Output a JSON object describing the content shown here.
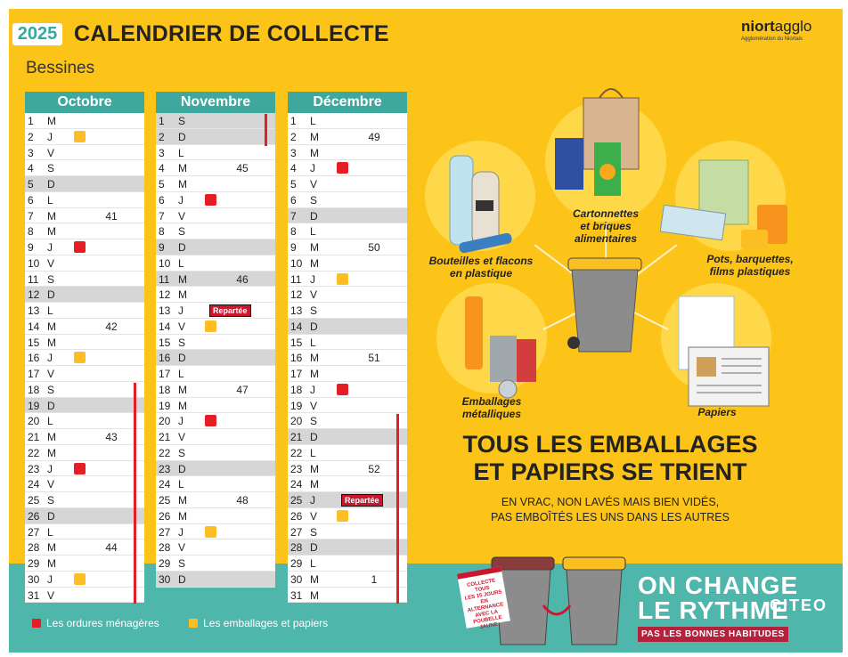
{
  "header": {
    "year": "2025",
    "title": "CALENDRIER DE COLLECTE",
    "city": "Bessines",
    "logo_name_bold": "niort",
    "logo_name_rest": "agglo",
    "logo_subtitle": "Agglomération du Niortais"
  },
  "months": [
    {
      "name": "Octobre",
      "days": [
        {
          "n": "1",
          "wd": "M"
        },
        {
          "n": "2",
          "wd": "J",
          "mark": "yellow"
        },
        {
          "n": "3",
          "wd": "V"
        },
        {
          "n": "4",
          "wd": "S"
        },
        {
          "n": "5",
          "wd": "D",
          "shaded": true
        },
        {
          "n": "6",
          "wd": "L"
        },
        {
          "n": "7",
          "wd": "M",
          "week": "41"
        },
        {
          "n": "8",
          "wd": "M"
        },
        {
          "n": "9",
          "wd": "J",
          "mark": "red"
        },
        {
          "n": "10",
          "wd": "V"
        },
        {
          "n": "11",
          "wd": "S"
        },
        {
          "n": "12",
          "wd": "D",
          "shaded": true
        },
        {
          "n": "13",
          "wd": "L"
        },
        {
          "n": "14",
          "wd": "M",
          "week": "42"
        },
        {
          "n": "15",
          "wd": "M"
        },
        {
          "n": "16",
          "wd": "J",
          "mark": "yellow"
        },
        {
          "n": "17",
          "wd": "V"
        },
        {
          "n": "18",
          "wd": "S"
        },
        {
          "n": "19",
          "wd": "D",
          "shaded": true
        },
        {
          "n": "20",
          "wd": "L"
        },
        {
          "n": "21",
          "wd": "M",
          "week": "43"
        },
        {
          "n": "22",
          "wd": "M"
        },
        {
          "n": "23",
          "wd": "J",
          "mark": "red"
        },
        {
          "n": "24",
          "wd": "V"
        },
        {
          "n": "25",
          "wd": "S"
        },
        {
          "n": "26",
          "wd": "D",
          "shaded": true
        },
        {
          "n": "27",
          "wd": "L"
        },
        {
          "n": "28",
          "wd": "M",
          "week": "44"
        },
        {
          "n": "29",
          "wd": "M"
        },
        {
          "n": "30",
          "wd": "J",
          "mark": "yellow"
        },
        {
          "n": "31",
          "wd": "V"
        }
      ]
    },
    {
      "name": "Novembre",
      "days": [
        {
          "n": "1",
          "wd": "S",
          "shaded": true
        },
        {
          "n": "2",
          "wd": "D",
          "shaded": true
        },
        {
          "n": "3",
          "wd": "L"
        },
        {
          "n": "4",
          "wd": "M",
          "week": "45"
        },
        {
          "n": "5",
          "wd": "M"
        },
        {
          "n": "6",
          "wd": "J",
          "mark": "red"
        },
        {
          "n": "7",
          "wd": "V"
        },
        {
          "n": "8",
          "wd": "S"
        },
        {
          "n": "9",
          "wd": "D",
          "shaded": true
        },
        {
          "n": "10",
          "wd": "L"
        },
        {
          "n": "11",
          "wd": "M",
          "week": "46",
          "shaded": true
        },
        {
          "n": "12",
          "wd": "M"
        },
        {
          "n": "13",
          "wd": "J",
          "report": "Repartée"
        },
        {
          "n": "14",
          "wd": "V",
          "mark": "yellow"
        },
        {
          "n": "15",
          "wd": "S"
        },
        {
          "n": "16",
          "wd": "D",
          "shaded": true
        },
        {
          "n": "17",
          "wd": "L"
        },
        {
          "n": "18",
          "wd": "M",
          "week": "47"
        },
        {
          "n": "19",
          "wd": "M"
        },
        {
          "n": "20",
          "wd": "J",
          "mark": "red"
        },
        {
          "n": "21",
          "wd": "V"
        },
        {
          "n": "22",
          "wd": "S"
        },
        {
          "n": "23",
          "wd": "D",
          "shaded": true
        },
        {
          "n": "24",
          "wd": "L"
        },
        {
          "n": "25",
          "wd": "M",
          "week": "48"
        },
        {
          "n": "26",
          "wd": "M"
        },
        {
          "n": "27",
          "wd": "J",
          "mark": "yellow"
        },
        {
          "n": "28",
          "wd": "V"
        },
        {
          "n": "29",
          "wd": "S"
        },
        {
          "n": "30",
          "wd": "D",
          "shaded": true
        }
      ]
    },
    {
      "name": "Décembre",
      "days": [
        {
          "n": "1",
          "wd": "L"
        },
        {
          "n": "2",
          "wd": "M",
          "week": "49"
        },
        {
          "n": "3",
          "wd": "M"
        },
        {
          "n": "4",
          "wd": "J",
          "mark": "red"
        },
        {
          "n": "5",
          "wd": "V"
        },
        {
          "n": "6",
          "wd": "S"
        },
        {
          "n": "7",
          "wd": "D",
          "shaded": true
        },
        {
          "n": "8",
          "wd": "L"
        },
        {
          "n": "9",
          "wd": "M",
          "week": "50"
        },
        {
          "n": "10",
          "wd": "M"
        },
        {
          "n": "11",
          "wd": "J",
          "mark": "yellow"
        },
        {
          "n": "12",
          "wd": "V"
        },
        {
          "n": "13",
          "wd": "S"
        },
        {
          "n": "14",
          "wd": "D",
          "shaded": true
        },
        {
          "n": "15",
          "wd": "L"
        },
        {
          "n": "16",
          "wd": "M",
          "week": "51"
        },
        {
          "n": "17",
          "wd": "M"
        },
        {
          "n": "18",
          "wd": "J",
          "mark": "red"
        },
        {
          "n": "19",
          "wd": "V"
        },
        {
          "n": "20",
          "wd": "S"
        },
        {
          "n": "21",
          "wd": "D",
          "shaded": true
        },
        {
          "n": "22",
          "wd": "L"
        },
        {
          "n": "23",
          "wd": "M",
          "week": "52"
        },
        {
          "n": "24",
          "wd": "M"
        },
        {
          "n": "25",
          "wd": "J",
          "shaded": true,
          "report": "Repartée"
        },
        {
          "n": "26",
          "wd": "V",
          "mark": "yellow"
        },
        {
          "n": "27",
          "wd": "S"
        },
        {
          "n": "28",
          "wd": "D",
          "shaded": true
        },
        {
          "n": "29",
          "wd": "L"
        },
        {
          "n": "30",
          "wd": "M",
          "week": "1"
        },
        {
          "n": "31",
          "wd": "M"
        }
      ]
    }
  ],
  "legend": {
    "red_label": "Les ordures ménagères",
    "yellow_label": "Les emballages et papiers"
  },
  "categories": {
    "cartons": [
      "Cartonnettes",
      "et briques",
      "alimentaires"
    ],
    "bottles": [
      "Bouteilles et flacons",
      "en plastique"
    ],
    "pots": [
      "Pots, barquettes,",
      "films plastiques"
    ],
    "metal": [
      "Emballages",
      "métalliques"
    ],
    "papers": [
      "Papiers"
    ]
  },
  "headline": [
    "TOUS LES EMBALLAGES",
    "ET PAPIERS SE TRIENT"
  ],
  "subheadline": [
    "EN VRAC, NON LAVÉS MAIS BIEN VIDÉS,",
    "PAS EMBOÎTÉS LES UNS DANS LES AUTRES"
  ],
  "campaign": {
    "line1": "ON CHANGE",
    "line2": "LE RYTHME",
    "tagline": "PAS LES BONNES HABITUDES",
    "calendar_note": [
      "COLLECTE",
      "TOUS",
      "LES 15 JOURS",
      "EN ALTERNANCE",
      "AVEC LA",
      "POUBELLE JAUNE"
    ]
  },
  "sponsor": "CITEO",
  "colors": {
    "background": "#fcc419",
    "teal": "#3fa89e",
    "red_mark": "#e31e24",
    "yellow_mark": "#fbbf24",
    "report_tag": "#c8182f"
  }
}
